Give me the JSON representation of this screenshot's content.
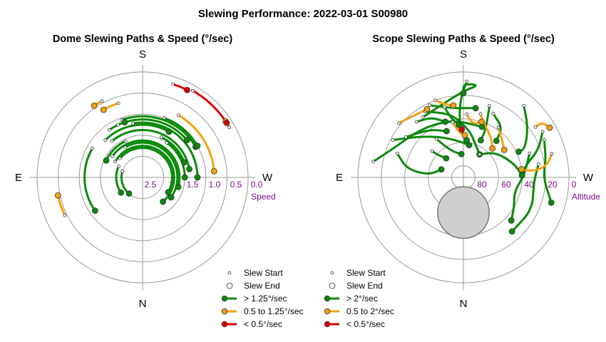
{
  "title": "Slewing Performance: 2022-03-01 S00980",
  "colors": {
    "fast": "#0a8a0a",
    "medium": "#f7a10d",
    "slow": "#dd0000",
    "grid": "#9a9a9a",
    "label": "#7a0e86"
  },
  "chart_data": [
    {
      "type": "polar-path",
      "title": "Dome Slewing Paths & Speed (°/sec)",
      "radial_axis_label": "Speed",
      "radial_tick_labels": [
        "2.5",
        "2",
        "1.5",
        "1.0",
        "0.5",
        "0.0"
      ],
      "compass": {
        "top": "S",
        "bottom": "N",
        "left": "E",
        "right": "W"
      },
      "legend": [
        "Slew Start",
        "Slew End",
        "> 1.25°/sec",
        "0.5 to 1.25°/sec",
        "< 0.5°/sec"
      ],
      "slews": [
        {
          "az0": 107,
          "az1": 40,
          "r": 0.2,
          "cls": "fast"
        },
        {
          "az0": 115,
          "az1": 55,
          "r": 0.25,
          "cls": "fast"
        },
        {
          "az0": 120,
          "az1": 320,
          "r": 0.3,
          "cls": "fast"
        },
        {
          "az0": 130,
          "az1": 300,
          "r": 0.28,
          "cls": "fast"
        },
        {
          "az0": 125,
          "az1": 285,
          "r": 0.35,
          "cls": "fast"
        },
        {
          "az0": 140,
          "az1": 260,
          "r": 0.45,
          "cls": "fast"
        },
        {
          "az0": 135,
          "az1": 210,
          "r": 0.5,
          "cls": "fast"
        },
        {
          "az0": 150,
          "az1": 305,
          "r": 0.33,
          "cls": "fast"
        },
        {
          "az0": 145,
          "az1": 230,
          "r": 0.55,
          "cls": "fast"
        },
        {
          "az0": 170,
          "az1": 270,
          "r": 0.52,
          "cls": "fast"
        },
        {
          "az0": 160,
          "az1": 240,
          "r": 0.58,
          "cls": "fast"
        },
        {
          "az0": 200,
          "az1": 240,
          "r": 0.6,
          "cls": "fast"
        },
        {
          "az0": 215,
          "az1": 270,
          "r": 0.4,
          "cls": "fast"
        },
        {
          "az0": 205,
          "az1": 250,
          "r": 0.42,
          "cls": "fast"
        },
        {
          "az0": 120,
          "az1": 55,
          "r": 0.55,
          "cls": "fast"
        },
        {
          "az0": 155,
          "az1": 115,
          "r": 0.38,
          "cls": "fast"
        },
        {
          "az0": 210,
          "az1": 265,
          "r": 0.68,
          "cls": "medium"
        },
        {
          "az0": 162,
          "az1": 150,
          "r": 0.74,
          "cls": "medium"
        },
        {
          "az0": 152,
          "az1": 146,
          "r": 0.82,
          "cls": "medium"
        },
        {
          "az0": 64,
          "az1": 78,
          "r": 0.82,
          "cls": "medium"
        },
        {
          "az0": 240,
          "az1": 236,
          "r": 0.95,
          "cls": "medium"
        },
        {
          "az0": 210,
          "az1": 237,
          "r": 0.95,
          "cls": "slow"
        },
        {
          "az0": 198,
          "az1": 207,
          "r": 0.93,
          "cls": "slow"
        },
        {
          "az0": 155,
          "az1": 162,
          "r": 0.55,
          "cls": "fast"
        }
      ]
    },
    {
      "type": "polar-path",
      "title": "Scope Slewing Paths & Speed (°/sec)",
      "radial_axis_label": "Altitude",
      "radial_tick_labels": [
        "80",
        "60",
        "40",
        "20",
        "0"
      ],
      "compass": {
        "top": "S",
        "bottom": "N",
        "left": "E",
        "right": "W"
      },
      "legend": [
        "Slew Start",
        "Slew End",
        "> 2°/sec",
        "0.5 to 2°/sec",
        "< 0.5°/sec"
      ],
      "moon": {
        "az": 0,
        "alt": 60,
        "radius_deg": 22
      },
      "slews": [
        {
          "pts": [
            [
              110,
              30
            ],
            [
              100,
              40
            ],
            [
              96,
              52
            ],
            [
              96,
              62
            ],
            [
              110,
              70
            ]
          ],
          "cls": "fast"
        },
        {
          "pts": [
            [
              150,
              25
            ],
            [
              170,
              35
            ],
            [
              188,
              50
            ],
            [
              200,
              60
            ],
            [
              215,
              66
            ]
          ],
          "cls": "fast"
        },
        {
          "pts": [
            [
              146,
              28
            ],
            [
              180,
              16
            ],
            [
              190,
              10
            ],
            [
              180,
              10
            ],
            [
              180,
              18
            ]
          ],
          "cls": "fast"
        },
        {
          "pts": [
            [
              118,
              22
            ],
            [
              132,
              38
            ],
            [
              150,
              50
            ],
            [
              170,
              58
            ],
            [
              190,
              62
            ]
          ],
          "cls": "fast"
        },
        {
          "pts": [
            [
              215,
              66
            ],
            [
              232,
              55
            ],
            [
              255,
              45
            ],
            [
              268,
              40
            ]
          ],
          "cls": "fast"
        },
        {
          "pts": [
            [
              250,
              30
            ],
            [
              268,
              38
            ],
            [
              285,
              45
            ],
            [
              300,
              40
            ],
            [
              312,
              35
            ]
          ],
          "cls": "fast"
        },
        {
          "pts": [
            [
              260,
              25
            ],
            [
              275,
              30
            ],
            [
              295,
              25
            ],
            [
              318,
              28
            ]
          ],
          "cls": "fast"
        },
        {
          "pts": [
            [
              182,
              8
            ],
            [
              178,
              22
            ],
            [
              176,
              40
            ],
            [
              178,
              52
            ],
            [
              185,
              58
            ]
          ],
          "cls": "fast"
        },
        {
          "pts": [
            [
              200,
              25
            ],
            [
              205,
              45
            ],
            [
              205,
              55
            ]
          ],
          "cls": "fast"
        },
        {
          "pts": [
            [
              100,
              12
            ],
            [
              112,
              25
            ],
            [
              140,
              35
            ],
            [
              170,
              40
            ],
            [
              200,
              44
            ]
          ],
          "cls": "fast"
        },
        {
          "pts": [
            [
              165,
              28
            ],
            [
              168,
              38
            ],
            [
              175,
              45
            ]
          ],
          "cls": "fast"
        },
        {
          "pts": [
            [
              240,
              12
            ],
            [
              250,
              22
            ],
            [
              258,
              35
            ],
            [
              268,
              40
            ]
          ],
          "cls": "fast"
        },
        {
          "pts": [
            [
              220,
              10
            ],
            [
              232,
              20
            ],
            [
              245,
              32
            ],
            [
              245,
              38
            ]
          ],
          "cls": "fast"
        },
        {
          "pts": [
            [
              205,
              30
            ],
            [
              218,
              36
            ],
            [
              222,
              48
            ]
          ],
          "cls": "fast"
        },
        {
          "pts": [
            [
              145,
              50
            ],
            [
              155,
              65
            ],
            [
              175,
              70
            ]
          ],
          "cls": "fast"
        },
        {
          "pts": [
            [
              125,
              30
            ],
            [
              145,
              40
            ],
            [
              160,
              48
            ]
          ],
          "cls": "fast"
        },
        {
          "pts": [
            [
              155,
              22
            ],
            [
              170,
              30
            ],
            [
              190,
              30
            ]
          ],
          "cls": "fast"
        },
        {
          "pts": [
            [
              130,
              55
            ],
            [
              132,
              62
            ],
            [
              138,
              68
            ]
          ],
          "cls": "fast"
        },
        {
          "pts": [
            [
              245,
              14
            ],
            [
              258,
              18
            ],
            [
              270,
              22
            ],
            [
              286,
              12
            ]
          ],
          "cls": "fast"
        },
        {
          "pts": [
            [
              140,
              28
            ],
            [
              152,
              32
            ],
            [
              162,
              40
            ]
          ],
          "cls": "fast"
        },
        {
          "pts": [
            [
              255,
              12
            ],
            [
              262,
              18
            ],
            [
              265,
              30
            ],
            [
              262,
              40
            ]
          ],
          "cls": "medium"
        },
        {
          "pts": [
            [
              235,
              15
            ],
            [
              235,
              8
            ],
            [
              240,
              5
            ]
          ],
          "cls": "medium"
        },
        {
          "pts": [
            [
              215,
              38
            ],
            [
              228,
              45
            ],
            [
              236,
              48
            ]
          ],
          "cls": "medium"
        },
        {
          "pts": [
            [
              195,
              34
            ],
            [
              200,
              40
            ],
            [
              214,
              48
            ],
            [
              225,
              55
            ]
          ],
          "cls": "medium"
        },
        {
          "pts": [
            [
              130,
              18
            ],
            [
              140,
              22
            ],
            [
              152,
              24
            ]
          ],
          "cls": "medium"
        },
        {
          "pts": [
            [
              183,
              36
            ],
            [
              190,
              44
            ],
            [
              198,
              40
            ]
          ],
          "cls": "medium"
        },
        {
          "pts": [
            [
              169,
              42
            ],
            [
              175,
              52
            ],
            [
              182,
              54
            ]
          ],
          "cls": "medium"
        },
        {
          "pts": [
            [
              160,
              20
            ],
            [
              165,
              25
            ],
            [
              172,
              28
            ]
          ],
          "cls": "medium"
        },
        {
          "pts": [
            [
              178,
              47
            ],
            [
              179,
              48
            ],
            [
              178,
              49
            ]
          ],
          "cls": "slow"
        }
      ]
    }
  ]
}
